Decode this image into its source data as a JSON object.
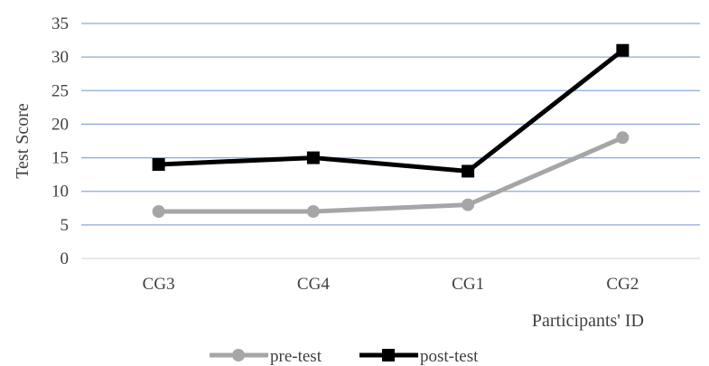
{
  "chart_data": {
    "type": "line",
    "categories": [
      "CG3",
      "CG4",
      "CG1",
      "CG2"
    ],
    "series": [
      {
        "name": "pre-test",
        "values": [
          7,
          7,
          8,
          18
        ],
        "color": "#a6a6a6",
        "marker": "circle"
      },
      {
        "name": "post-test",
        "values": [
          14,
          15,
          13,
          31
        ],
        "color": "#000000",
        "marker": "square"
      }
    ],
    "title": "",
    "xlabel": "Participants' ID",
    "ylabel": "Test Score",
    "ylim": [
      0,
      35
    ],
    "yticks": [
      "0",
      "5",
      "10",
      "15",
      "20",
      "25",
      "30",
      "35"
    ],
    "grid": true,
    "grid_color": "#8eaadb",
    "legend_position": "bottom"
  }
}
